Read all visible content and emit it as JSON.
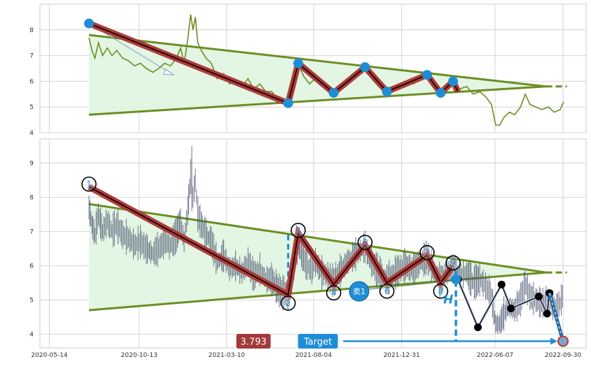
{
  "chart_data": [
    {
      "type": "line",
      "pane": "top",
      "ylim": [
        4,
        9
      ],
      "yticks": [
        4,
        5,
        6,
        7,
        8
      ],
      "grid": true,
      "colors": {
        "price": "#6b8e23",
        "pattern": "#b03a3a",
        "node": "#1f8dd6",
        "fill": "#e2f4e2"
      },
      "triangle": {
        "upper": [
          {
            "x": "2020-07-20",
            "y": 7.8
          },
          {
            "x": "2022-09-01",
            "y": 5.8
          }
        ],
        "lower": [
          {
            "x": "2020-07-20",
            "y": 4.7
          },
          {
            "x": "2022-09-01",
            "y": 5.8
          }
        ]
      },
      "pattern_points": [
        {
          "x": "2020-07-20",
          "y": 8.25
        },
        {
          "x": "2021-06-22",
          "y": 5.15
        },
        {
          "x": "2021-07-09",
          "y": 6.7
        },
        {
          "x": "2021-09-07",
          "y": 5.55
        },
        {
          "x": "2021-10-30",
          "y": 6.55
        },
        {
          "x": "2021-12-06",
          "y": 5.6
        },
        {
          "x": "2022-02-12",
          "y": 6.25
        },
        {
          "x": "2022-03-07",
          "y": 5.55
        },
        {
          "x": "2022-03-28",
          "y": 6.0
        }
      ],
      "pattern_tail": {
        "x": "2022-04-05",
        "y": 5.6
      },
      "series": [
        {
          "values_from": "price_series"
        }
      ]
    },
    {
      "type": "line",
      "pane": "bottom",
      "ylim": [
        3.6,
        9.7
      ],
      "yticks": [
        4,
        5,
        6,
        7,
        8,
        9
      ],
      "xticks": [
        "2020-05-14",
        "2020-10-13",
        "2021-03-10",
        "2021-08-04",
        "2021-12-31",
        "2022-06-07",
        "2022-09-30"
      ],
      "grid": true,
      "colors": {
        "price": "#4a5570",
        "pattern": "#b03a3a",
        "accent": "#1f8dd6",
        "label_box": "#1f8dd6",
        "price_box": "#a33a3a"
      },
      "triangle": {
        "upper": [
          {
            "x": "2020-07-20",
            "y": 7.8
          },
          {
            "x": "2022-09-01",
            "y": 5.8
          }
        ],
        "lower": [
          {
            "x": "2020-07-20",
            "y": 4.7
          },
          {
            "x": "2022-09-01",
            "y": 5.8
          }
        ]
      },
      "pattern_points": [
        {
          "label": "1",
          "x": "2020-07-20",
          "y": 8.3
        },
        {
          "label": "2",
          "x": "2021-06-22",
          "y": 5.15
        },
        {
          "label": "3",
          "x": "2021-07-09",
          "y": 6.95
        },
        {
          "label": "4",
          "x": "2021-09-07",
          "y": 5.45
        },
        {
          "label": "5",
          "x": "2021-10-30",
          "y": 6.6
        },
        {
          "label": "6",
          "x": "2021-12-06",
          "y": 5.5
        },
        {
          "label": "7",
          "x": "2022-02-12",
          "y": 6.3
        },
        {
          "label": "8",
          "x": "2022-03-07",
          "y": 5.5
        },
        {
          "label": "9",
          "x": "2022-03-28",
          "y": 6.0
        }
      ],
      "projection": [
        {
          "x": "2022-04-05",
          "y": 5.6
        },
        {
          "x": "2022-05-09",
          "y": 4.2
        },
        {
          "x": "2022-06-18",
          "y": 5.45
        },
        {
          "x": "2022-07-04",
          "y": 4.75
        },
        {
          "x": "2022-08-20",
          "y": 5.1
        },
        {
          "x": "2022-09-03",
          "y": 4.6
        },
        {
          "x": "2022-09-07",
          "y": 5.2
        },
        {
          "x": "2022-09-30",
          "y": 3.793
        }
      ],
      "sell_signal": {
        "label": "卖1",
        "x": "2021-10-20",
        "y": 5.25
      },
      "height_marker": {
        "label": "H",
        "x": "2022-03-28",
        "y_top": 5.85,
        "y_bottom": 3.8
      },
      "target": {
        "label": "Target",
        "price_label": "3.793",
        "value": 3.793,
        "x": "2022-09-30"
      },
      "left_height_marker": {
        "x": "2021-06-22",
        "y_top": 6.9,
        "y_bottom": 5.15
      }
    }
  ],
  "price_series": [
    {
      "x": "2020-07-20",
      "y": 7.7
    },
    {
      "x": "2020-07-25",
      "y": 7.2
    },
    {
      "x": "2020-07-30",
      "y": 6.9
    },
    {
      "x": "2020-08-05",
      "y": 7.5
    },
    {
      "x": "2020-08-12",
      "y": 7.0
    },
    {
      "x": "2020-08-20",
      "y": 7.3
    },
    {
      "x": "2020-08-28",
      "y": 7.0
    },
    {
      "x": "2020-09-05",
      "y": 7.2
    },
    {
      "x": "2020-09-15",
      "y": 6.9
    },
    {
      "x": "2020-09-25",
      "y": 6.8
    },
    {
      "x": "2020-10-05",
      "y": 6.6
    },
    {
      "x": "2020-10-15",
      "y": 6.7
    },
    {
      "x": "2020-10-25",
      "y": 6.5
    },
    {
      "x": "2020-11-05",
      "y": 6.35
    },
    {
      "x": "2020-11-15",
      "y": 6.5
    },
    {
      "x": "2020-11-25",
      "y": 6.7
    },
    {
      "x": "2020-12-05",
      "y": 6.6
    },
    {
      "x": "2020-12-15",
      "y": 6.9
    },
    {
      "x": "2020-12-22",
      "y": 7.3
    },
    {
      "x": "2020-12-28",
      "y": 6.7
    },
    {
      "x": "2021-01-03",
      "y": 7.6
    },
    {
      "x": "2021-01-08",
      "y": 8.6
    },
    {
      "x": "2021-01-12",
      "y": 8.0
    },
    {
      "x": "2021-01-16",
      "y": 8.5
    },
    {
      "x": "2021-01-20",
      "y": 7.5
    },
    {
      "x": "2021-01-26",
      "y": 7.2
    },
    {
      "x": "2021-02-03",
      "y": 6.9
    },
    {
      "x": "2021-02-12",
      "y": 6.7
    },
    {
      "x": "2021-02-22",
      "y": 6.1
    },
    {
      "x": "2021-03-05",
      "y": 6.3
    },
    {
      "x": "2021-03-15",
      "y": 5.9
    },
    {
      "x": "2021-03-25",
      "y": 6.0
    },
    {
      "x": "2021-04-05",
      "y": 5.8
    },
    {
      "x": "2021-04-15",
      "y": 6.1
    },
    {
      "x": "2021-04-25",
      "y": 5.7
    },
    {
      "x": "2021-05-05",
      "y": 5.9
    },
    {
      "x": "2021-05-15",
      "y": 5.6
    },
    {
      "x": "2021-05-25",
      "y": 5.6
    },
    {
      "x": "2021-06-05",
      "y": 5.3
    },
    {
      "x": "2021-06-15",
      "y": 5.2
    },
    {
      "x": "2021-06-22",
      "y": 5.15
    },
    {
      "x": "2021-06-30",
      "y": 5.9
    },
    {
      "x": "2021-07-09",
      "y": 6.7
    },
    {
      "x": "2021-07-18",
      "y": 6.2
    },
    {
      "x": "2021-07-28",
      "y": 5.9
    },
    {
      "x": "2021-08-07",
      "y": 6.1
    },
    {
      "x": "2021-08-18",
      "y": 5.8
    },
    {
      "x": "2021-08-28",
      "y": 5.7
    },
    {
      "x": "2021-09-07",
      "y": 5.55
    },
    {
      "x": "2021-09-20",
      "y": 5.9
    },
    {
      "x": "2021-10-05",
      "y": 6.2
    },
    {
      "x": "2021-10-18",
      "y": 6.4
    },
    {
      "x": "2021-10-30",
      "y": 6.55
    },
    {
      "x": "2021-11-10",
      "y": 6.1
    },
    {
      "x": "2021-11-22",
      "y": 5.8
    },
    {
      "x": "2021-12-06",
      "y": 5.6
    },
    {
      "x": "2021-12-20",
      "y": 5.8
    },
    {
      "x": "2022-01-05",
      "y": 6.0
    },
    {
      "x": "2022-01-20",
      "y": 5.9
    },
    {
      "x": "2022-02-01",
      "y": 6.1
    },
    {
      "x": "2022-02-12",
      "y": 6.25
    },
    {
      "x": "2022-02-25",
      "y": 5.8
    },
    {
      "x": "2022-03-07",
      "y": 5.55
    },
    {
      "x": "2022-03-18",
      "y": 5.8
    },
    {
      "x": "2022-03-28",
      "y": 6.0
    },
    {
      "x": "2022-04-08",
      "y": 5.7
    },
    {
      "x": "2022-04-20",
      "y": 5.8
    },
    {
      "x": "2022-05-01",
      "y": 5.5
    },
    {
      "x": "2022-05-12",
      "y": 5.6
    },
    {
      "x": "2022-05-22",
      "y": 5.4
    },
    {
      "x": "2022-06-01",
      "y": 5.1
    },
    {
      "x": "2022-06-08",
      "y": 4.3
    },
    {
      "x": "2022-06-15",
      "y": 4.3
    },
    {
      "x": "2022-06-22",
      "y": 4.6
    },
    {
      "x": "2022-07-01",
      "y": 4.8
    },
    {
      "x": "2022-07-10",
      "y": 4.7
    },
    {
      "x": "2022-07-20",
      "y": 5.0
    },
    {
      "x": "2022-07-28",
      "y": 5.5
    },
    {
      "x": "2022-08-05",
      "y": 5.1
    },
    {
      "x": "2022-08-15",
      "y": 5.0
    },
    {
      "x": "2022-08-25",
      "y": 4.9
    },
    {
      "x": "2022-09-05",
      "y": 5.0
    },
    {
      "x": "2022-09-15",
      "y": 4.8
    },
    {
      "x": "2022-09-25",
      "y": 4.9
    },
    {
      "x": "2022-10-01",
      "y": 5.2
    }
  ]
}
